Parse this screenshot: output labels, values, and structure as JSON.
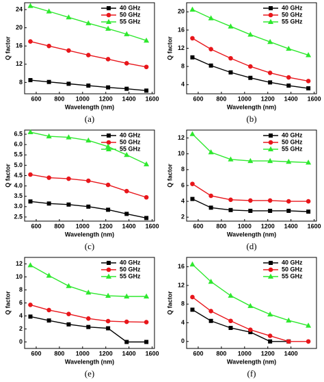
{
  "chart_data": [
    {
      "type": "line",
      "caption": "(a)",
      "xlabel": "Wavelength (nm)",
      "ylabel": "Q factor",
      "x": [
        550,
        710,
        880,
        1050,
        1220,
        1380,
        1550
      ],
      "xlim": [
        500,
        1620
      ],
      "xticks": [
        600,
        800,
        1000,
        1200,
        1400,
        1600
      ],
      "ylim": [
        5.5,
        25.5
      ],
      "yticks": [
        8,
        12,
        16,
        20,
        24
      ],
      "legend": "upper right",
      "series": [
        {
          "name": "40 GHz",
          "color": "#000000",
          "marker": "square",
          "values": [
            8.5,
            8.1,
            7.7,
            7.3,
            6.9,
            6.6,
            6.2
          ]
        },
        {
          "name": "50 GHz",
          "color": "#e8161b",
          "marker": "circle",
          "values": [
            17.0,
            16.0,
            15.0,
            14.0,
            13.1,
            12.2,
            11.4
          ]
        },
        {
          "name": "55 GHz",
          "color": "#2ee82e",
          "marker": "triangle",
          "values": [
            24.8,
            23.6,
            22.3,
            21.0,
            19.8,
            18.6,
            17.2
          ]
        }
      ]
    },
    {
      "type": "line",
      "caption": "(b)",
      "xlabel": "Wavelength (nm)",
      "ylabel": "Q factor",
      "x": [
        550,
        710,
        880,
        1050,
        1220,
        1380,
        1550
      ],
      "xlim": [
        500,
        1620
      ],
      "xticks": [
        600,
        800,
        1000,
        1200,
        1400,
        1600
      ],
      "ylim": [
        2,
        22
      ],
      "yticks": [
        4,
        8,
        12,
        16,
        20
      ],
      "legend": "upper right",
      "series": [
        {
          "name": "40 GHz",
          "color": "#000000",
          "marker": "square",
          "values": [
            10,
            8.2,
            6.7,
            5.5,
            4.5,
            3.8,
            3.2
          ]
        },
        {
          "name": "50 GHz",
          "color": "#e8161b",
          "marker": "circle",
          "values": [
            14.2,
            11.8,
            9.8,
            8.0,
            6.6,
            5.6,
            4.8
          ]
        },
        {
          "name": "55 GHz",
          "color": "#2ee82e",
          "marker": "triangle",
          "values": [
            20.5,
            18.6,
            16.8,
            15.0,
            13.4,
            11.9,
            10.5
          ]
        }
      ]
    },
    {
      "type": "line",
      "caption": "(c)",
      "xlabel": "Wavelength (nm)",
      "ylabel": "Q factor",
      "x": [
        550,
        710,
        880,
        1050,
        1220,
        1380,
        1550
      ],
      "xlim": [
        500,
        1620
      ],
      "xticks": [
        600,
        800,
        1000,
        1200,
        1400,
        1600
      ],
      "ylim": [
        2.3,
        6.7
      ],
      "yticks": [
        2.5,
        {
          "value": 3,
          "label": "3.0"
        },
        3.5,
        {
          "value": 4,
          "label": "4.0"
        },
        4.5,
        {
          "value": 5,
          "label": "5.0"
        },
        5.5,
        {
          "value": 6,
          "label": "6.0"
        },
        6.5
      ],
      "legend": "upper right",
      "series": [
        {
          "name": "40 GHz",
          "color": "#000000",
          "marker": "square",
          "values": [
            3.25,
            3.15,
            3.1,
            3.0,
            2.85,
            2.65,
            2.45
          ]
        },
        {
          "name": "50 GHz",
          "color": "#e8161b",
          "marker": "circle",
          "values": [
            4.55,
            4.4,
            4.35,
            4.25,
            4.05,
            3.75,
            3.45
          ]
        },
        {
          "name": "55 GHz",
          "color": "#2ee82e",
          "marker": "triangle",
          "values": [
            6.6,
            6.4,
            6.35,
            6.2,
            5.9,
            5.5,
            5.05
          ]
        }
      ]
    },
    {
      "type": "line",
      "caption": "(d)",
      "xlabel": "Wavelength (nm)",
      "ylabel": "Q factor",
      "x": [
        550,
        710,
        880,
        1050,
        1220,
        1380,
        1550
      ],
      "xlim": [
        500,
        1620
      ],
      "xticks": [
        600,
        800,
        1000,
        1200,
        1400,
        1600
      ],
      "ylim": [
        1.5,
        13
      ],
      "yticks": [
        2,
        4,
        6,
        8,
        10,
        12
      ],
      "legend": "upper right",
      "series": [
        {
          "name": "40 GHz",
          "color": "#000000",
          "marker": "square",
          "values": [
            4.3,
            3.2,
            2.9,
            2.8,
            2.8,
            2.8,
            2.7
          ]
        },
        {
          "name": "50 GHz",
          "color": "#e8161b",
          "marker": "circle",
          "values": [
            6.2,
            4.7,
            4.2,
            4.1,
            4.1,
            4.0,
            4.0
          ]
        },
        {
          "name": "55 GHz",
          "color": "#2ee82e",
          "marker": "triangle",
          "values": [
            12.5,
            10.2,
            9.3,
            9.1,
            9.1,
            9.0,
            8.9
          ]
        }
      ]
    },
    {
      "type": "line",
      "caption": "(e)",
      "xlabel": "Wavelength (nm)",
      "ylabel": "Q factor",
      "x": [
        550,
        710,
        880,
        1050,
        1220,
        1380,
        1550
      ],
      "xlim": [
        500,
        1620
      ],
      "xticks": [
        600,
        800,
        1000,
        1200,
        1400,
        1600
      ],
      "ylim": [
        -1,
        13
      ],
      "yticks": [
        0,
        2,
        4,
        6,
        8,
        10,
        12
      ],
      "legend": "upper right",
      "series": [
        {
          "name": "40 GHz",
          "color": "#000000",
          "marker": "square",
          "values": [
            3.9,
            3.3,
            2.7,
            2.3,
            2.1,
            0,
            0
          ]
        },
        {
          "name": "50 GHz",
          "color": "#e8161b",
          "marker": "circle",
          "values": [
            5.7,
            4.9,
            4.3,
            3.6,
            3.2,
            3.1,
            3.05
          ]
        },
        {
          "name": "55 GHz",
          "color": "#2ee82e",
          "marker": "triangle",
          "values": [
            11.8,
            10.2,
            8.6,
            7.6,
            7.1,
            7.0,
            7.0
          ]
        }
      ]
    },
    {
      "type": "line",
      "caption": "(f)",
      "xlabel": "Wavelength (nm)",
      "ylabel": "Q factor",
      "x": [
        550,
        710,
        880,
        1050,
        1220,
        1380,
        1550
      ],
      "xlim": [
        500,
        1620
      ],
      "xticks": [
        600,
        800,
        1000,
        1200,
        1400
      ],
      "ylim": [
        -1.5,
        18
      ],
      "yticks": [
        0,
        4,
        8,
        12,
        16
      ],
      "legend": "upper right",
      "series": [
        {
          "name": "40 GHz",
          "color": "#000000",
          "marker": "square",
          "values": [
            6.8,
            4.4,
            2.9,
            2.0,
            0,
            0,
            null
          ]
        },
        {
          "name": "50 GHz",
          "color": "#e8161b",
          "marker": "circle",
          "values": [
            9.5,
            6.5,
            4.4,
            2.5,
            1.2,
            0,
            0
          ]
        },
        {
          "name": "55 GHz",
          "color": "#2ee82e",
          "marker": "triangle",
          "values": [
            16.5,
            12.8,
            9.8,
            7.6,
            5.8,
            4.5,
            3.4
          ]
        }
      ]
    }
  ]
}
